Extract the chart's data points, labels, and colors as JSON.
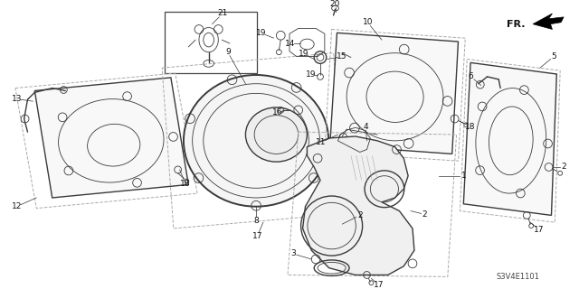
{
  "bg_color": "#ffffff",
  "diagram_code": "S3V4E1101",
  "figsize": [
    6.4,
    3.2
  ],
  "dpi": 100,
  "lc": "#3a3a3a",
  "lc_dark": "#1a1a1a",
  "lc_med": "#555555",
  "lc_dashed": "#888888"
}
